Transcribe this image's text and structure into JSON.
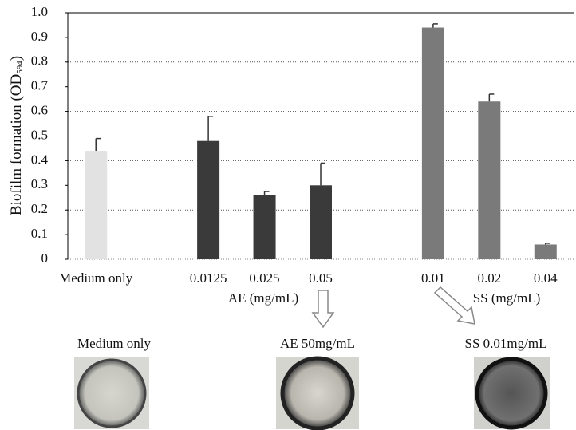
{
  "chart_data": {
    "type": "bar",
    "ylabel": {
      "text": "Biofilm formation (OD",
      "subscript": "594",
      "suffix": ")"
    },
    "categories": [
      "Medium only",
      null,
      "0.0125",
      "0.025",
      "0.05",
      null,
      "0.01",
      "0.02",
      "0.04"
    ],
    "values": [
      0.44,
      null,
      0.48,
      0.26,
      0.3,
      null,
      0.94,
      0.64,
      0.06
    ],
    "errors": [
      0.05,
      null,
      0.1,
      0.015,
      0.09,
      null,
      0.015,
      0.03,
      0.005
    ],
    "colors": [
      "#e2e2e2",
      null,
      "#3a3a3a",
      "#3a3a3a",
      "#3a3a3a",
      null,
      "#7a7a7a",
      "#7a7a7a",
      "#7a7a7a"
    ],
    "ylim": [
      0,
      1
    ],
    "yticks": [
      0,
      0.1,
      0.2,
      0.3,
      0.4,
      0.5,
      0.6,
      0.7,
      0.8,
      0.9,
      {
        "value": 1,
        "label": "1.0"
      }
    ],
    "grid_ticks": [
      0.2,
      0.4,
      0.6,
      0.8
    ],
    "group_labels": [
      "AE (mg/mL)",
      "SS (mg/mL)"
    ]
  },
  "images": [
    {
      "caption": "Medium only"
    },
    {
      "caption": "AE 50mg/mL"
    },
    {
      "caption": "SS 0.01mg/mL"
    }
  ]
}
